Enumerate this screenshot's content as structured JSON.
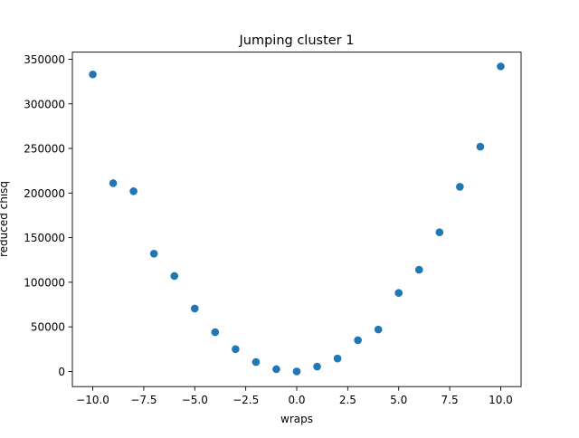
{
  "chart_data": {
    "type": "scatter",
    "title": "Jumping cluster 1",
    "xlabel": "wraps",
    "ylabel": "reduced chisq",
    "xlim": [
      -11.0,
      11.0
    ],
    "ylim": [
      -17000,
      358000
    ],
    "xticks": [
      -10.0,
      -7.5,
      -5.0,
      -2.5,
      0.0,
      2.5,
      5.0,
      7.5,
      10.0
    ],
    "xtick_labels": [
      "−10.0",
      "−7.5",
      "−5.0",
      "−2.5",
      "0.0",
      "2.5",
      "5.0",
      "7.5",
      "10.0"
    ],
    "yticks": [
      0,
      50000,
      100000,
      150000,
      200000,
      250000,
      300000,
      350000
    ],
    "ytick_labels": [
      "0",
      "50000",
      "100000",
      "150000",
      "200000",
      "250000",
      "300000",
      "350000"
    ],
    "grid": false,
    "marker_color": "#1f77b4",
    "points": [
      {
        "x": -10,
        "y": 333000
      },
      {
        "x": -9,
        "y": 211000
      },
      {
        "x": -8,
        "y": 202000
      },
      {
        "x": -7,
        "y": 132000
      },
      {
        "x": -6,
        "y": 107000
      },
      {
        "x": -5,
        "y": 70500
      },
      {
        "x": -4,
        "y": 44000
      },
      {
        "x": -3,
        "y": 25000
      },
      {
        "x": -2,
        "y": 10500
      },
      {
        "x": -1,
        "y": 2500
      },
      {
        "x": 0,
        "y": 0
      },
      {
        "x": 1,
        "y": 5500
      },
      {
        "x": 2,
        "y": 14500
      },
      {
        "x": 3,
        "y": 35000
      },
      {
        "x": 4,
        "y": 47000
      },
      {
        "x": 5,
        "y": 88000
      },
      {
        "x": 6,
        "y": 114000
      },
      {
        "x": 7,
        "y": 156000
      },
      {
        "x": 8,
        "y": 207000
      },
      {
        "x": 9,
        "y": 252000
      },
      {
        "x": 10,
        "y": 342000
      }
    ]
  }
}
